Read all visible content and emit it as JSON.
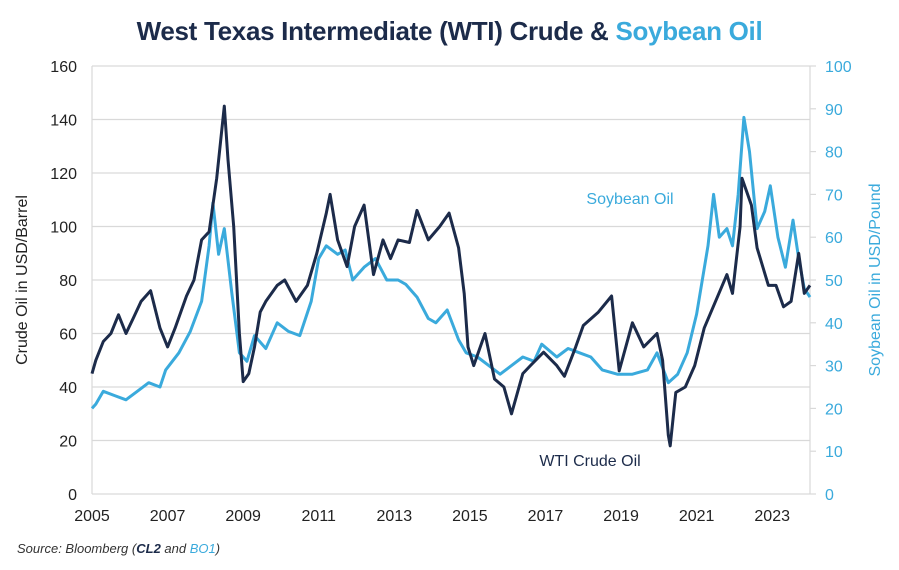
{
  "title": {
    "part1": "West Texas Intermediate (WTI) Crude & ",
    "part2": "Soybean Oil"
  },
  "source": {
    "prefix": "Source: Bloomberg (",
    "code1": "CL2",
    "mid": " and ",
    "code2": "BO1",
    "suffix": ")"
  },
  "colors": {
    "wti": "#1c2b4a",
    "soy": "#3aaadc",
    "grid": "#d9d9d9"
  },
  "chart_data": {
    "type": "line",
    "title": "West Texas Intermediate (WTI) Crude & Soybean Oil",
    "xlabel": "",
    "ylabel": "Crude Oil in USD/Barrel",
    "y2label": "Soybean Oil in USD/Pound",
    "xlim": [
      2005,
      2024
    ],
    "ylim": [
      0,
      160
    ],
    "y2lim": [
      0,
      100
    ],
    "grid": true,
    "x_ticks": [
      "2005",
      "2007",
      "2009",
      "2011",
      "2013",
      "2015",
      "2017",
      "2019",
      "2021",
      "2023"
    ],
    "y_ticks": [
      "0",
      "20",
      "40",
      "60",
      "80",
      "100",
      "120",
      "140",
      "160"
    ],
    "y2_ticks": [
      "0",
      "10",
      "20",
      "30",
      "40",
      "50",
      "60",
      "70",
      "80",
      "90",
      "100"
    ],
    "series": [
      {
        "name": "WTI Crude Oil",
        "axis": "left",
        "points": [
          [
            2005.0,
            45
          ],
          [
            2005.1,
            50
          ],
          [
            2005.3,
            57
          ],
          [
            2005.5,
            60
          ],
          [
            2005.7,
            67
          ],
          [
            2005.9,
            60
          ],
          [
            2006.1,
            66
          ],
          [
            2006.3,
            72
          ],
          [
            2006.55,
            76
          ],
          [
            2006.8,
            62
          ],
          [
            2007.0,
            55
          ],
          [
            2007.2,
            62
          ],
          [
            2007.5,
            74
          ],
          [
            2007.7,
            80
          ],
          [
            2007.9,
            95
          ],
          [
            2008.1,
            98
          ],
          [
            2008.3,
            118
          ],
          [
            2008.5,
            145
          ],
          [
            2008.6,
            125
          ],
          [
            2008.75,
            100
          ],
          [
            2008.9,
            60
          ],
          [
            2009.0,
            42
          ],
          [
            2009.15,
            45
          ],
          [
            2009.3,
            55
          ],
          [
            2009.45,
            68
          ],
          [
            2009.6,
            72
          ],
          [
            2009.9,
            78
          ],
          [
            2010.1,
            80
          ],
          [
            2010.4,
            72
          ],
          [
            2010.7,
            78
          ],
          [
            2010.95,
            90
          ],
          [
            2011.2,
            105
          ],
          [
            2011.3,
            112
          ],
          [
            2011.5,
            95
          ],
          [
            2011.75,
            85
          ],
          [
            2011.95,
            100
          ],
          [
            2012.2,
            108
          ],
          [
            2012.45,
            82
          ],
          [
            2012.7,
            95
          ],
          [
            2012.9,
            88
          ],
          [
            2013.1,
            95
          ],
          [
            2013.4,
            94
          ],
          [
            2013.6,
            106
          ],
          [
            2013.9,
            95
          ],
          [
            2014.2,
            100
          ],
          [
            2014.45,
            105
          ],
          [
            2014.7,
            92
          ],
          [
            2014.85,
            75
          ],
          [
            2014.95,
            55
          ],
          [
            2015.1,
            48
          ],
          [
            2015.4,
            60
          ],
          [
            2015.65,
            43
          ],
          [
            2015.9,
            40
          ],
          [
            2016.1,
            30
          ],
          [
            2016.4,
            45
          ],
          [
            2016.6,
            48
          ],
          [
            2016.95,
            53
          ],
          [
            2017.3,
            48
          ],
          [
            2017.5,
            44
          ],
          [
            2017.8,
            55
          ],
          [
            2018.0,
            63
          ],
          [
            2018.4,
            68
          ],
          [
            2018.75,
            74
          ],
          [
            2018.95,
            46
          ],
          [
            2019.3,
            64
          ],
          [
            2019.6,
            55
          ],
          [
            2019.95,
            60
          ],
          [
            2020.1,
            50
          ],
          [
            2020.25,
            22
          ],
          [
            2020.3,
            18
          ],
          [
            2020.45,
            38
          ],
          [
            2020.7,
            40
          ],
          [
            2020.95,
            48
          ],
          [
            2021.2,
            62
          ],
          [
            2021.5,
            72
          ],
          [
            2021.8,
            82
          ],
          [
            2021.95,
            75
          ],
          [
            2022.15,
            100
          ],
          [
            2022.2,
            118
          ],
          [
            2022.45,
            108
          ],
          [
            2022.6,
            92
          ],
          [
            2022.9,
            78
          ],
          [
            2023.1,
            78
          ],
          [
            2023.3,
            70
          ],
          [
            2023.5,
            72
          ],
          [
            2023.7,
            90
          ],
          [
            2023.85,
            75
          ],
          [
            2024.0,
            78
          ]
        ]
      },
      {
        "name": "Soybean Oil",
        "axis": "right",
        "points": [
          [
            2005.0,
            20
          ],
          [
            2005.1,
            21
          ],
          [
            2005.3,
            24
          ],
          [
            2005.6,
            23
          ],
          [
            2005.9,
            22
          ],
          [
            2006.2,
            24
          ],
          [
            2006.5,
            26
          ],
          [
            2006.8,
            25
          ],
          [
            2006.95,
            29
          ],
          [
            2007.3,
            33
          ],
          [
            2007.6,
            38
          ],
          [
            2007.9,
            45
          ],
          [
            2008.1,
            58
          ],
          [
            2008.2,
            68
          ],
          [
            2008.35,
            56
          ],
          [
            2008.5,
            62
          ],
          [
            2008.7,
            47
          ],
          [
            2008.9,
            33
          ],
          [
            2009.1,
            31
          ],
          [
            2009.3,
            37
          ],
          [
            2009.6,
            34
          ],
          [
            2009.9,
            40
          ],
          [
            2010.2,
            38
          ],
          [
            2010.5,
            37
          ],
          [
            2010.8,
            45
          ],
          [
            2011.0,
            55
          ],
          [
            2011.2,
            58
          ],
          [
            2011.5,
            56
          ],
          [
            2011.7,
            57
          ],
          [
            2011.9,
            50
          ],
          [
            2012.2,
            53
          ],
          [
            2012.5,
            55
          ],
          [
            2012.8,
            50
          ],
          [
            2013.1,
            50
          ],
          [
            2013.3,
            49
          ],
          [
            2013.6,
            46
          ],
          [
            2013.9,
            41
          ],
          [
            2014.1,
            40
          ],
          [
            2014.4,
            43
          ],
          [
            2014.7,
            36
          ],
          [
            2014.9,
            33
          ],
          [
            2015.2,
            32
          ],
          [
            2015.5,
            30
          ],
          [
            2015.8,
            28
          ],
          [
            2016.1,
            30
          ],
          [
            2016.4,
            32
          ],
          [
            2016.7,
            31
          ],
          [
            2016.9,
            35
          ],
          [
            2017.3,
            32
          ],
          [
            2017.6,
            34
          ],
          [
            2017.9,
            33
          ],
          [
            2018.2,
            32
          ],
          [
            2018.5,
            29
          ],
          [
            2018.9,
            28
          ],
          [
            2019.3,
            28
          ],
          [
            2019.7,
            29
          ],
          [
            2019.95,
            33
          ],
          [
            2020.25,
            26
          ],
          [
            2020.5,
            28
          ],
          [
            2020.75,
            33
          ],
          [
            2021.0,
            42
          ],
          [
            2021.3,
            58
          ],
          [
            2021.45,
            70
          ],
          [
            2021.6,
            60
          ],
          [
            2021.8,
            62
          ],
          [
            2021.95,
            58
          ],
          [
            2022.1,
            70
          ],
          [
            2022.25,
            88
          ],
          [
            2022.4,
            80
          ],
          [
            2022.6,
            62
          ],
          [
            2022.8,
            66
          ],
          [
            2022.95,
            72
          ],
          [
            2023.15,
            60
          ],
          [
            2023.35,
            53
          ],
          [
            2023.55,
            64
          ],
          [
            2023.7,
            55
          ],
          [
            2023.85,
            48
          ],
          [
            2024.0,
            46
          ]
        ]
      }
    ],
    "annotations": [
      {
        "text": "Soybean Oil",
        "series": "Soybean Oil"
      },
      {
        "text": "WTI Crude Oil",
        "series": "WTI Crude Oil"
      }
    ]
  }
}
